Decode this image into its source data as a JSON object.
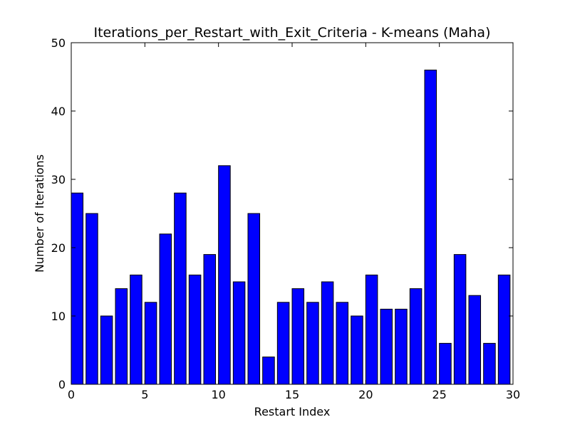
{
  "chart_data": {
    "type": "bar",
    "title": "Iterations_per_Restart_with_Exit_Criteria - K-means (Maha)",
    "xlabel": "Restart Index",
    "ylabel": "Number of Iterations",
    "xlim": [
      0,
      30
    ],
    "ylim": [
      0,
      50
    ],
    "xticks": [
      "0",
      "5",
      "10",
      "15",
      "20",
      "25",
      "30"
    ],
    "yticks": [
      "0",
      "10",
      "20",
      "30",
      "40",
      "50"
    ],
    "grid": false,
    "bar_color": "#0000ff",
    "bar_edge_color": "#000000",
    "x": [
      0,
      1,
      2,
      3,
      4,
      5,
      6,
      7,
      8,
      9,
      10,
      11,
      12,
      13,
      14,
      15,
      16,
      17,
      18,
      19,
      20,
      21,
      22,
      23,
      24,
      25,
      26,
      27,
      28,
      29
    ],
    "values": [
      28,
      25,
      10,
      14,
      16,
      12,
      22,
      28,
      16,
      19,
      32,
      15,
      25,
      4,
      12,
      14,
      12,
      15,
      12,
      10,
      16,
      11,
      11,
      14,
      46,
      6,
      19,
      13,
      6,
      16
    ]
  }
}
